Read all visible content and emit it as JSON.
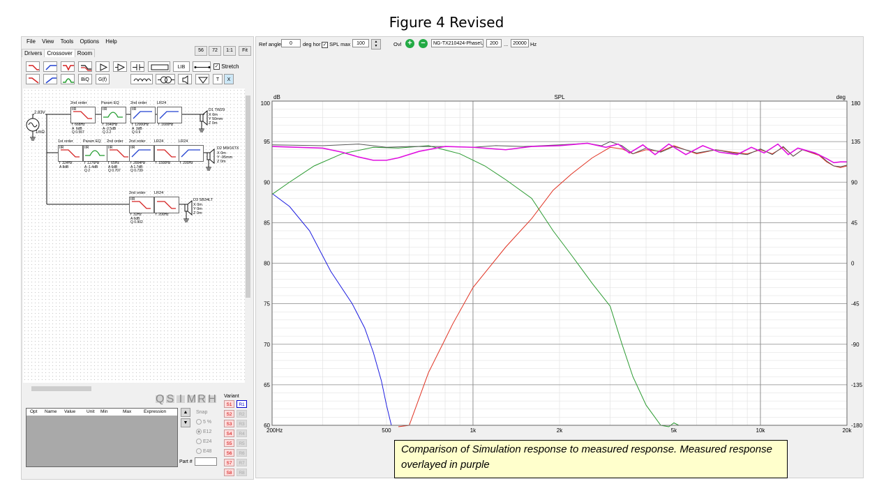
{
  "figure_title": "Figure 4 Revised",
  "menu": [
    "File",
    "View",
    "Tools",
    "Options",
    "Help"
  ],
  "tabs": [
    "Drivers",
    "Crossover",
    "Room"
  ],
  "zoom_buttons": [
    "56",
    "72",
    "1:1",
    "Fit"
  ],
  "toolbar": {
    "lib_label": "LIB",
    "biq_label": "BiQ",
    "gf_label": "G(f)",
    "t_label": "T",
    "x_label": "X",
    "stretch_label": "Stretch",
    "stretch_checked": "✓"
  },
  "schematic": {
    "source_voltage": "2.83V",
    "source_impedance": "1mΩ",
    "row1": [
      {
        "title": "2nd order",
        "tag": "IIR",
        "params": "f  668Hz\nA  6dB\nQ 0.557",
        "curve": "lowpass",
        "color": "#d42020"
      },
      {
        "title": "Param EQ",
        "tag": "IIR",
        "params": "f  1640Hz\nA -2.5dB\nQ 2.2",
        "curve": "peak",
        "color": "#1e9a2a"
      },
      {
        "title": "2nd order",
        "tag": "IIR",
        "params": "f  12000Hz\nA  3dB\nQ 0.9",
        "curve": "highpass",
        "color": "#2040d0"
      },
      {
        "title": "LR24",
        "tag": "",
        "params": "f  1600Hz",
        "curve": "highpass",
        "color": "#2040d0"
      }
    ],
    "row2": [
      {
        "title": "1st order",
        "tag": "IIR",
        "params": "f  324Hz\nA 8dB",
        "curve": "lowpass",
        "color": "#d42020"
      },
      {
        "title": "Param EQ",
        "tag": "IIR",
        "params": "f  1276Hz\nA -1.4dB\nQ 2",
        "curve": "peak",
        "color": "#1e9a2a"
      },
      {
        "title": "2nd order",
        "tag": "IIR",
        "params": "f  65Hz\nA 6dB\nQ 0.707",
        "curve": "lowpass",
        "color": "#d42020"
      },
      {
        "title": "2nd order",
        "tag": "IIR",
        "params": "f  2894Hz\nA 1.7dB\nQ 0.739",
        "curve": "highpass",
        "color": "#2040d0"
      },
      {
        "title": "LR24",
        "tag": "",
        "params": "f  1500Hz",
        "curve": "lowpass",
        "color": "#d42020"
      },
      {
        "title": "LR24",
        "tag": "",
        "params": "f  200Hz",
        "curve": "highpass",
        "color": "#2040d0"
      }
    ],
    "row3": [
      {
        "title": "2nd order",
        "tag": "IIR",
        "params": "f  32Hz\nA 6dB\nQ 0.902",
        "curve": "lowpass",
        "color": "#d42020"
      },
      {
        "title": "LR24",
        "tag": "",
        "params": "f  200Hz",
        "curve": "lowpass",
        "color": "#d42020"
      }
    ],
    "drivers": [
      {
        "name": "D1 TW29",
        "pos": "X 0m\nY 50mm\nZ 0m"
      },
      {
        "name": "D2 MW16TX",
        "pos": "X 0m\nY -95mm\nZ 0m"
      },
      {
        "name": "D3 SB34LT",
        "pos": "X 0m\nY 0m\nZ 0m"
      }
    ]
  },
  "small_buttons": [
    "Q",
    "S",
    "I",
    "M",
    "R",
    "H"
  ],
  "param_table": {
    "columns": [
      "Opt",
      "Name",
      "Value",
      "Unit",
      "Min",
      "Max",
      "Expression"
    ]
  },
  "snap": {
    "label": "Snap",
    "options": [
      "5 %",
      "E12",
      "E24",
      "E48"
    ]
  },
  "variant": {
    "label": "Variant",
    "s": [
      "S1",
      "S2",
      "S3",
      "S4",
      "S5",
      "S6",
      "S7",
      "S8"
    ],
    "r": [
      "R1",
      "R2",
      "R3",
      "R4",
      "R5",
      "R6",
      "R7",
      "R8"
    ]
  },
  "part_label": "Part #",
  "top_toolbar": {
    "ref_angle_label": "Ref angle",
    "ref_angle_value": "0",
    "deg_hor_label": "deg hor",
    "spl_max_label": "SPL max",
    "spl_max_checked": "✓",
    "spl_max_value": "100",
    "ovl_label": "Ovl",
    "plus_label": "+",
    "minus_label": "−",
    "file_value": "NG-TX210424-PhaseUr",
    "freq_from": "200",
    "ellipsis": "...",
    "freq_to": "20000",
    "hz_label": "Hz"
  },
  "chart_data": {
    "type": "line",
    "title": "SPL",
    "ylabel_left": "dB",
    "ylabel_right": "deg",
    "xscale": "log",
    "xlim": [
      200,
      20000
    ],
    "ylim": [
      60,
      100
    ],
    "ylim_right": [
      -180,
      180
    ],
    "x_tick_labels": [
      {
        "v": 200,
        "t": "200Hz"
      },
      {
        "v": 500,
        "t": "500"
      },
      {
        "v": 1000,
        "t": "1k"
      },
      {
        "v": 2000,
        "t": "2k"
      },
      {
        "v": 5000,
        "t": "5k"
      },
      {
        "v": 10000,
        "t": "10k"
      },
      {
        "v": 20000,
        "t": "20k"
      }
    ],
    "y_ticks": [
      60,
      65,
      70,
      75,
      80,
      85,
      90,
      95,
      100
    ],
    "y_right_ticks": [
      -180,
      -135,
      -90,
      -45,
      0,
      45,
      90,
      135,
      180
    ],
    "grid": true,
    "series": [
      {
        "color": "#1a1ae0",
        "points": [
          [
            200,
            88.6
          ],
          [
            230,
            87
          ],
          [
            270,
            84
          ],
          [
            320,
            79
          ],
          [
            380,
            75
          ],
          [
            420,
            72
          ],
          [
            450,
            69
          ],
          [
            480,
            65.5
          ],
          [
            500,
            62.5
          ],
          [
            520,
            60
          ]
        ]
      },
      {
        "color": "#e03020",
        "points": [
          [
            550,
            56
          ],
          [
            600,
            60
          ],
          [
            700,
            66.5
          ],
          [
            850,
            72.5
          ],
          [
            1000,
            77
          ],
          [
            1300,
            82
          ],
          [
            1600,
            85.5
          ],
          [
            1900,
            89
          ],
          [
            2200,
            91
          ],
          [
            2600,
            93
          ],
          [
            3000,
            94.3
          ],
          [
            3300,
            94.1
          ],
          [
            3600,
            93.5
          ],
          [
            4000,
            94
          ],
          [
            4500,
            93.8
          ],
          [
            5000,
            94.5
          ],
          [
            6000,
            93.5
          ],
          [
            7000,
            94
          ],
          [
            8000,
            93.7
          ],
          [
            9000,
            93.5
          ],
          [
            10000,
            94
          ],
          [
            11000,
            93.5
          ],
          [
            12000,
            94.3
          ],
          [
            13000,
            93.2
          ],
          [
            14000,
            94
          ],
          [
            16000,
            93.3
          ],
          [
            17000,
            92.5
          ],
          [
            18000,
            92
          ],
          [
            19000,
            91.8
          ],
          [
            20000,
            92
          ]
        ]
      },
      {
        "color": "#2a9a30",
        "points": [
          [
            200,
            88.5
          ],
          [
            230,
            90
          ],
          [
            280,
            92
          ],
          [
            350,
            93.5
          ],
          [
            450,
            94.3
          ],
          [
            550,
            94.2
          ],
          [
            700,
            94.5
          ],
          [
            900,
            93.5
          ],
          [
            1100,
            92
          ],
          [
            1300,
            90.3
          ],
          [
            1600,
            88
          ],
          [
            1900,
            84
          ],
          [
            2200,
            81
          ],
          [
            2600,
            77.5
          ],
          [
            3000,
            74.7
          ],
          [
            3300,
            70
          ],
          [
            3600,
            66
          ],
          [
            4000,
            62.5
          ],
          [
            4500,
            60
          ],
          [
            4800,
            59.3
          ],
          [
            5000,
            60.3
          ],
          [
            5200,
            60
          ]
        ]
      },
      {
        "color": "#555555",
        "points": [
          [
            200,
            94.6
          ],
          [
            300,
            94.5
          ],
          [
            400,
            94.7
          ],
          [
            500,
            94.3
          ],
          [
            600,
            94.4
          ],
          [
            800,
            94.4
          ],
          [
            1000,
            94.3
          ],
          [
            1200,
            94.5
          ],
          [
            1500,
            94.4
          ],
          [
            2000,
            94.6
          ],
          [
            2500,
            94.8
          ],
          [
            2800,
            94.5
          ],
          [
            3000,
            95
          ],
          [
            3300,
            94.5
          ],
          [
            3600,
            93.5
          ],
          [
            4000,
            94.2
          ],
          [
            4500,
            93.7
          ],
          [
            5000,
            94.4
          ],
          [
            6000,
            93.6
          ],
          [
            7000,
            94
          ],
          [
            8000,
            93.6
          ],
          [
            9000,
            93.4
          ],
          [
            10000,
            94.1
          ],
          [
            11000,
            93.4
          ],
          [
            12000,
            94.4
          ],
          [
            13000,
            93.2
          ],
          [
            14000,
            94
          ],
          [
            16000,
            93.4
          ],
          [
            17000,
            92.6
          ],
          [
            18000,
            92
          ],
          [
            19000,
            91.9
          ],
          [
            20000,
            92.1
          ]
        ]
      },
      {
        "color": "#e010e0",
        "points": [
          [
            200,
            94.4
          ],
          [
            300,
            94.2
          ],
          [
            350,
            93.7
          ],
          [
            400,
            93.1
          ],
          [
            450,
            92.7
          ],
          [
            500,
            92.7
          ],
          [
            550,
            93
          ],
          [
            650,
            93.8
          ],
          [
            800,
            94.4
          ],
          [
            1000,
            94.3
          ],
          [
            1300,
            94
          ],
          [
            1600,
            94.4
          ],
          [
            2000,
            94.5
          ],
          [
            2500,
            94.8
          ],
          [
            2900,
            94.3
          ],
          [
            3200,
            94.7
          ],
          [
            3500,
            93.6
          ],
          [
            3900,
            94.6
          ],
          [
            4300,
            93.4
          ],
          [
            4800,
            94.7
          ],
          [
            5500,
            93.4
          ],
          [
            6300,
            94.5
          ],
          [
            7200,
            93.7
          ],
          [
            8300,
            93.4
          ],
          [
            9300,
            94.3
          ],
          [
            10300,
            93.6
          ],
          [
            11500,
            94.7
          ],
          [
            12500,
            93.4
          ],
          [
            13500,
            94.2
          ],
          [
            15500,
            93.6
          ],
          [
            17000,
            92.9
          ],
          [
            18000,
            92.4
          ],
          [
            19000,
            92.5
          ],
          [
            20000,
            92.5
          ]
        ]
      }
    ]
  },
  "caption": "Comparison of Simulation response to measured response.  Measured response overlayed in purple"
}
